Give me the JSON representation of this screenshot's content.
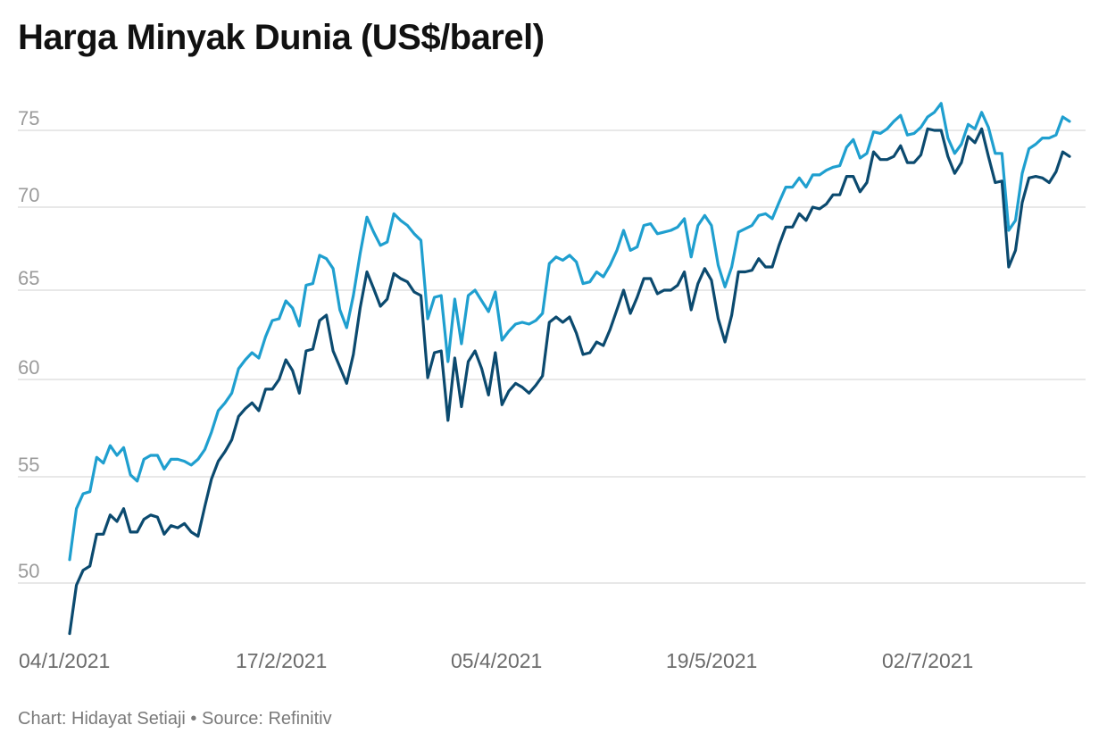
{
  "title": "Harga Minyak Dunia (US$/barel)",
  "footer": {
    "credit": "Chart: Hidayat Setiaji",
    "separator": " • ",
    "source": "Source: Refinitiv"
  },
  "chart_data": {
    "type": "line",
    "title": "Harga Minyak Dunia (US$/barel)",
    "xlabel": "",
    "ylabel": "",
    "ylim": [
      47.5,
      77.5
    ],
    "yticks": [
      50,
      55,
      60,
      65,
      70,
      75
    ],
    "xticks": [
      "04/1/2021",
      "17/2/2021",
      "05/4/2021",
      "19/5/2021",
      "02/7/2021"
    ],
    "grid": true,
    "legend": "none",
    "series": [
      {
        "color": "#1f9fcf",
        "values": [
          51.1,
          53.5,
          54.2,
          54.3,
          56.0,
          55.7,
          56.6,
          56.1,
          56.5,
          55.1,
          54.8,
          55.9,
          56.1,
          56.1,
          55.4,
          55.9,
          55.9,
          55.8,
          55.6,
          55.9,
          56.4,
          57.3,
          58.4,
          58.8,
          59.3,
          60.6,
          61.1,
          61.5,
          61.2,
          62.4,
          63.3,
          63.4,
          64.4,
          64.0,
          63.0,
          65.3,
          65.4,
          67.1,
          66.9,
          66.3,
          63.9,
          62.9,
          64.7,
          67.2,
          69.4,
          68.5,
          67.7,
          67.9,
          69.6,
          69.2,
          68.9,
          68.4,
          68.0,
          63.4,
          64.6,
          64.7,
          61.0,
          64.5,
          62.0,
          64.7,
          65.0,
          64.4,
          63.8,
          64.9,
          62.2,
          62.7,
          63.1,
          63.2,
          63.1,
          63.3,
          63.7,
          66.6,
          67.0,
          66.8,
          67.1,
          66.7,
          65.4,
          65.5,
          66.1,
          65.8,
          66.5,
          67.4,
          68.6,
          67.4,
          67.6,
          68.9,
          69.0,
          68.4,
          68.5,
          68.6,
          68.8,
          69.3,
          67.0,
          68.9,
          69.5,
          68.9,
          66.5,
          65.2,
          66.4,
          68.5,
          68.7,
          68.9,
          69.5,
          69.6,
          69.3,
          70.3,
          71.3,
          71.3,
          71.9,
          71.3,
          72.1,
          72.1,
          72.4,
          72.6,
          72.7,
          73.9,
          74.4,
          73.2,
          73.5,
          74.9,
          74.8,
          75.1,
          75.6,
          76.0,
          74.7,
          74.8,
          75.2,
          75.9,
          76.2,
          76.8,
          74.5,
          73.5,
          74.1,
          75.4,
          75.1,
          76.2,
          75.2,
          73.5,
          73.5,
          68.6,
          69.2,
          72.2,
          73.8,
          74.1,
          74.5,
          74.5,
          74.7,
          75.9,
          75.6
        ]
      },
      {
        "color": "#0b4a6f",
        "values": [
          47.6,
          49.9,
          50.6,
          50.8,
          52.3,
          52.3,
          53.2,
          52.9,
          53.5,
          52.4,
          52.4,
          53.0,
          53.2,
          53.1,
          52.3,
          52.7,
          52.6,
          52.8,
          52.4,
          52.2,
          53.6,
          54.9,
          55.8,
          56.3,
          56.9,
          58.1,
          58.5,
          58.8,
          58.4,
          59.5,
          59.5,
          60.0,
          61.1,
          60.5,
          59.3,
          61.6,
          61.7,
          63.3,
          63.6,
          61.6,
          60.7,
          59.8,
          61.4,
          64.0,
          66.1,
          65.1,
          64.1,
          64.5,
          66.0,
          65.7,
          65.5,
          64.9,
          64.7,
          60.1,
          61.5,
          61.6,
          57.9,
          61.2,
          58.6,
          61.0,
          61.6,
          60.6,
          59.2,
          61.5,
          58.7,
          59.4,
          59.8,
          59.6,
          59.3,
          59.7,
          60.2,
          63.2,
          63.5,
          63.2,
          63.5,
          62.6,
          61.4,
          61.5,
          62.1,
          61.9,
          62.8,
          63.9,
          65.0,
          63.7,
          64.6,
          65.7,
          65.7,
          64.8,
          65.0,
          65.0,
          65.3,
          66.1,
          63.9,
          65.4,
          66.3,
          65.6,
          63.4,
          62.1,
          63.6,
          66.1,
          66.1,
          66.2,
          66.9,
          66.4,
          66.4,
          67.7,
          68.8,
          68.8,
          69.6,
          69.2,
          70.0,
          69.9,
          70.2,
          70.8,
          70.8,
          72.0,
          72.0,
          71.0,
          71.6,
          73.6,
          73.1,
          73.1,
          73.3,
          74.0,
          72.9,
          72.9,
          73.4,
          75.1,
          75.0,
          75.0,
          73.3,
          72.2,
          72.9,
          74.6,
          74.2,
          75.1,
          73.3,
          71.6,
          71.7,
          66.4,
          67.4,
          70.3,
          71.9,
          72.0,
          71.9,
          71.6,
          72.3,
          73.6,
          73.3
        ]
      }
    ]
  }
}
